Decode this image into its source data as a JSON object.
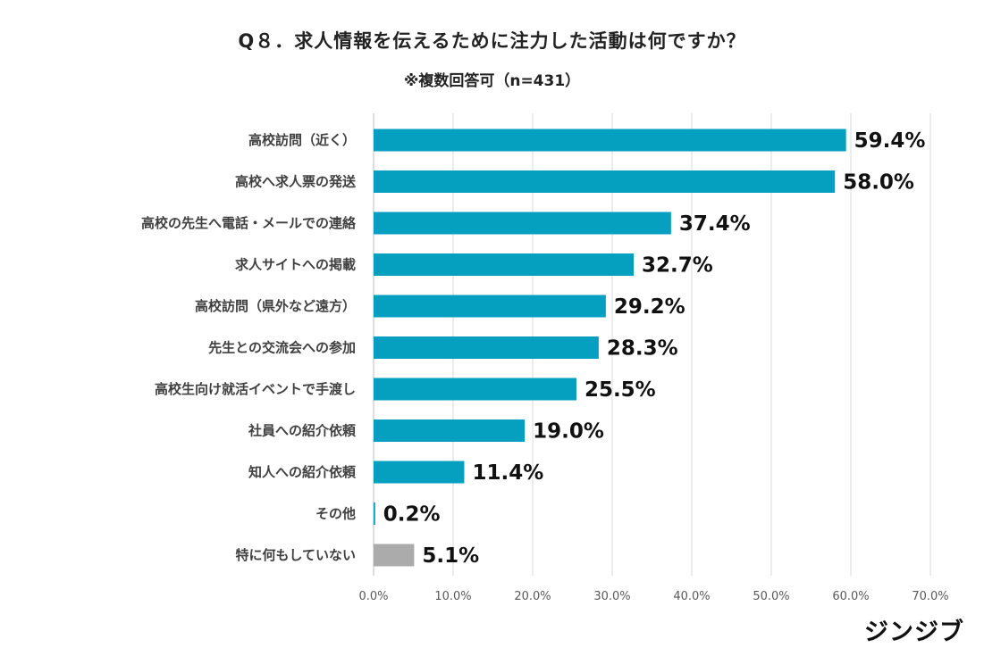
{
  "header": {
    "title": "Q８．求人情報を伝えるために注力した活動は何ですか？",
    "subtitle": "※複数回答可（n=431）"
  },
  "brand": "ジンジブ",
  "chart_data": {
    "type": "bar",
    "orientation": "horizontal",
    "title": "Q８．求人情報を伝えるために注力した活動は何ですか？",
    "subtitle": "※複数回答可（n=431）",
    "xlabel": "",
    "ylabel": "",
    "xlim": [
      0,
      70
    ],
    "x_ticks": [
      "0.0%",
      "10.0%",
      "20.0%",
      "30.0%",
      "40.0%",
      "50.0%",
      "60.0%",
      "70.0%"
    ],
    "grid": true,
    "legend": "none",
    "colors": {
      "bar": "#05A0BF",
      "highlight": "#ABABAB",
      "grid": "#D9D9D9"
    },
    "categories": [
      "高校訪問（近く）",
      "高校へ求人票の発送",
      "高校の先生へ電話・メールでの連絡",
      "求人サイトへの掲載",
      "高校訪問（県外など遠方）",
      "先生との交流会への参加",
      "高校生向け就活イベントで手渡し",
      "社員への紹介依頼",
      "知人への紹介依頼",
      "その他",
      "特に何もしていない"
    ],
    "values": [
      59.4,
      58.0,
      37.4,
      32.7,
      29.2,
      28.3,
      25.5,
      19.0,
      11.4,
      0.2,
      5.1
    ],
    "value_labels": [
      "59.4%",
      "58.0%",
      "37.4%",
      "32.7%",
      "29.2%",
      "28.3%",
      "25.5%",
      "19.0%",
      "11.4%",
      "0.2%",
      "5.1%"
    ],
    "bar_colors": [
      "#05A0BF",
      "#05A0BF",
      "#05A0BF",
      "#05A0BF",
      "#05A0BF",
      "#05A0BF",
      "#05A0BF",
      "#05A0BF",
      "#05A0BF",
      "#05A0BF",
      "#ABABAB"
    ]
  }
}
